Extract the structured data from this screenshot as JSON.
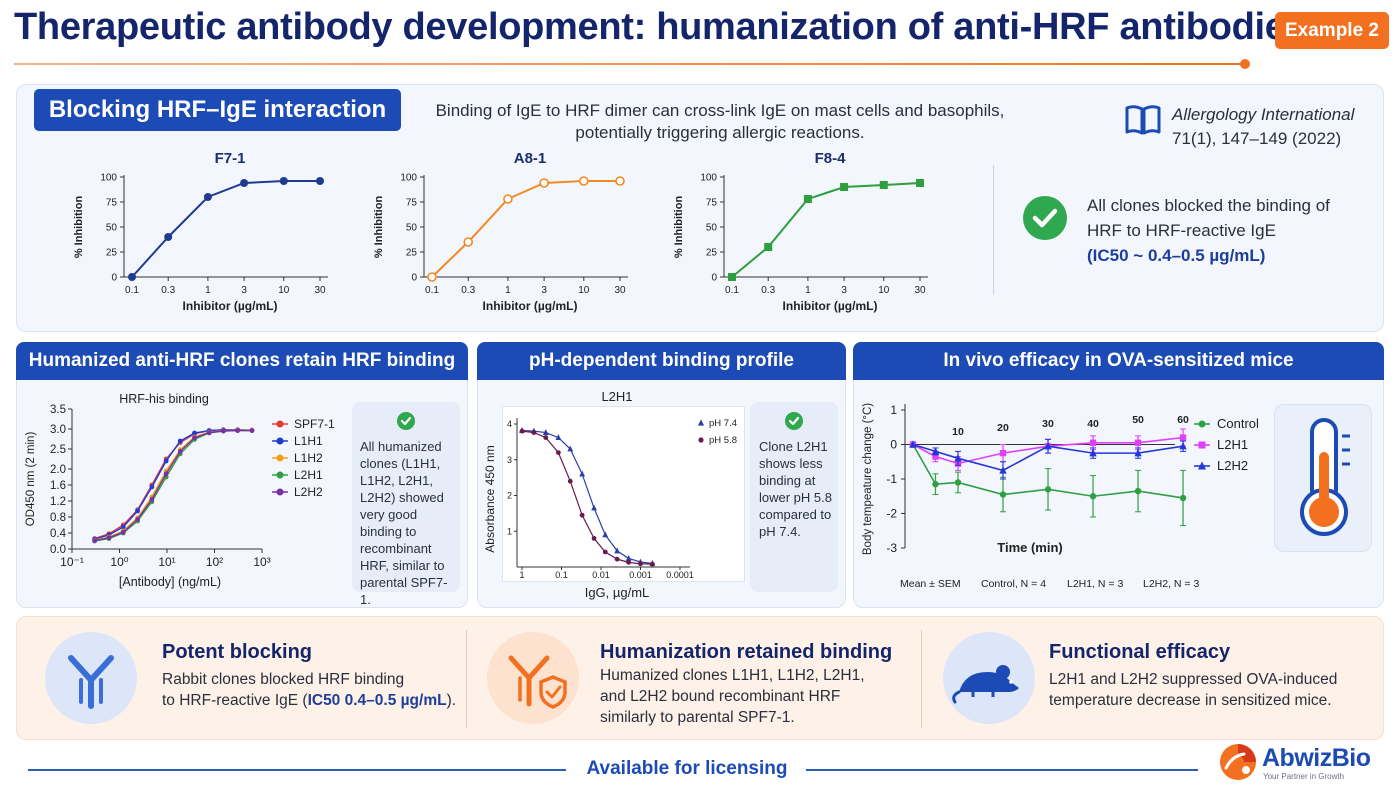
{
  "header": {
    "title": "Therapeutic antibody development: humanization of anti-HRF antibodies",
    "badge": "Example 2"
  },
  "top": {
    "section_tag": "Blocking HRF–IgE interaction",
    "mechanism_line1": "Binding of IgE to HRF dimer can cross-link IgE on mast cells and basophils,",
    "mechanism_line2": "potentially triggering allergic reactions.",
    "reference_journal": "Allergology International",
    "reference_cite": "71(1), 147–149 (2022)",
    "claim_line1": "All clones blocked the binding of",
    "claim_line2": "HRF to HRF-reactive IgE",
    "claim_line3": "(IC50 ~ 0.4–0.5 µg/mL)"
  },
  "sections": {
    "binding_title": "Humanized anti-HRF clones retain HRF binding",
    "binding_note": "All humanized clones (L1H1, L1H2, L2H1, L2H2) showed very good binding to recombinant HRF, similar to parental SPF7-1.",
    "ph_title": "pH-dependent binding profile",
    "ph_note": "Clone L2H1 shows less binding at lower pH 5.8 compared to pH 7.4.",
    "invivo_title": "In vivo efficacy in OVA-sensitized mice"
  },
  "bottom": {
    "item1_title": "Potent blocking",
    "item1_line1": "Rabbit clones blocked HRF binding",
    "item1_line2a": "to HRF-reactive IgE (",
    "item1_line2b": "IC50 0.4–0.5 µg/mL",
    "item1_line2c": ").",
    "item2_title": "Humanization retained binding",
    "item2_line1": "Humanized clones L1H1, L1H2, L2H1,",
    "item2_line2": "and L2H2 bound recombinant HRF",
    "item2_line3": "similarly to parental SPF7-1.",
    "item3_title": "Functional efficacy",
    "item3_line1": "L2H1 and L2H2 suppressed OVA-induced",
    "item3_line2": "temperature decrease in sensitized mice."
  },
  "footer": {
    "licensing": "Available for licensing",
    "brand": "AbwizBio",
    "tagline": "Your Partner in Growth"
  },
  "colors": {
    "navy": "#14256b",
    "blue": "#1d4bb5",
    "orange": "#f37021",
    "green": "#2fa84f"
  },
  "chart_data": [
    {
      "type": "line",
      "title": "F7-1",
      "xlabel": "Inhibitor (µg/mL)",
      "ylabel": "% Inhibition",
      "xscale": "log",
      "x": [
        0.1,
        0.3,
        1,
        3,
        10,
        30
      ],
      "xtick_labels": [
        "0.1",
        "0.3",
        "1",
        "3",
        "10",
        "30"
      ],
      "yticks": [
        0,
        25,
        50,
        75,
        100
      ],
      "ylim": [
        0,
        100
      ],
      "series": [
        {
          "values": [
            0,
            40,
            80,
            94,
            96,
            96
          ],
          "color": "#1f3a93",
          "marker": "filled-circle"
        }
      ]
    },
    {
      "type": "line",
      "title": "A8-1",
      "xlabel": "Inhibitor (µg/mL)",
      "ylabel": "% Inhibition",
      "xscale": "log",
      "x": [
        0.1,
        0.3,
        1,
        3,
        10,
        30
      ],
      "xtick_labels": [
        "0.1",
        "0.3",
        "1",
        "3",
        "10",
        "30"
      ],
      "yticks": [
        0,
        25,
        50,
        75,
        100
      ],
      "ylim": [
        0,
        100
      ],
      "series": [
        {
          "values": [
            0,
            35,
            78,
            94,
            96,
            96
          ],
          "color": "#f08a24",
          "marker": "open-circle"
        }
      ]
    },
    {
      "type": "line",
      "title": "F8-4",
      "xlabel": "Inhibitor (µg/mL)",
      "ylabel": "% Inhibition",
      "xscale": "log",
      "x": [
        0.1,
        0.3,
        1,
        3,
        10,
        30
      ],
      "xtick_labels": [
        "0.1",
        "0.3",
        "1",
        "3",
        "10",
        "30"
      ],
      "yticks": [
        0,
        25,
        50,
        75,
        100
      ],
      "ylim": [
        0,
        100
      ],
      "series": [
        {
          "values": [
            0,
            30,
            78,
            90,
            92,
            94
          ],
          "color": "#2e9e3e",
          "marker": "filled-square"
        }
      ]
    },
    {
      "type": "line",
      "title": "HRF-his binding",
      "xlabel": "[Antibody] (ng/mL)",
      "ylabel": "OD450 nm (2 min)",
      "xscale": "log",
      "xlim": [
        0.1,
        1000
      ],
      "xtick_labels": [
        "10⁻¹",
        "10⁰",
        "10¹",
        "10²",
        "10³"
      ],
      "ylim": [
        0,
        3.5
      ],
      "yticks": [
        0.0,
        0.4,
        0.8,
        1.2,
        1.6,
        2.0,
        2.5,
        3.0,
        3.5
      ],
      "ytick_labels": [
        "0.0",
        "0.4",
        "0.8",
        "1.2",
        "1.6",
        "2.0",
        "2.5",
        "3.0",
        "3.5"
      ],
      "x": [
        0.3,
        0.6,
        1.2,
        2.4,
        4.8,
        9.6,
        19,
        38,
        77,
        154,
        307,
        614
      ],
      "series": [
        {
          "name": "SPF7-1",
          "color": "#e53935",
          "marker": "circle",
          "values": [
            0.26,
            0.38,
            0.6,
            0.98,
            1.6,
            2.25,
            2.66,
            2.88,
            2.96,
            2.98,
            2.98,
            2.97
          ]
        },
        {
          "name": "L1H1",
          "color": "#1e3bd6",
          "marker": "circle",
          "values": [
            0.25,
            0.35,
            0.55,
            0.95,
            1.55,
            2.2,
            2.7,
            2.9,
            2.96,
            2.98,
            2.98,
            2.97
          ]
        },
        {
          "name": "L1H2",
          "color": "#f39c12",
          "marker": "circle",
          "values": [
            0.22,
            0.3,
            0.45,
            0.78,
            1.3,
            1.95,
            2.48,
            2.8,
            2.92,
            2.96,
            2.97,
            2.97
          ]
        },
        {
          "name": "L2H1",
          "color": "#2ea043",
          "marker": "circle",
          "values": [
            0.2,
            0.26,
            0.4,
            0.7,
            1.18,
            1.8,
            2.38,
            2.74,
            2.9,
            2.95,
            2.96,
            2.96
          ]
        },
        {
          "name": "L2H2",
          "color": "#7b2fa6",
          "marker": "circle",
          "values": [
            0.21,
            0.28,
            0.42,
            0.74,
            1.24,
            1.88,
            2.44,
            2.78,
            2.91,
            2.95,
            2.96,
            2.96
          ]
        }
      ]
    },
    {
      "type": "line",
      "title": "L2H1",
      "xlabel": "IgG, µg/mL",
      "ylabel": "Absorbance 450 nm",
      "xscale": "log",
      "xaxis_reversed": true,
      "xtick_labels": [
        "1",
        "0.1",
        "0.01",
        "0.001",
        "0.0001"
      ],
      "ylim": [
        0,
        4
      ],
      "yticks": [
        1,
        2,
        3,
        4
      ],
      "x": [
        1,
        0.5,
        0.25,
        0.12,
        0.06,
        0.03,
        0.015,
        0.0078,
        0.0039,
        0.002,
        0.001,
        0.0005
      ],
      "series": [
        {
          "name": "pH 7.4",
          "color": "#2b3fa6",
          "marker": "triangle",
          "values": [
            3.82,
            3.8,
            3.76,
            3.62,
            3.3,
            2.6,
            1.65,
            0.9,
            0.45,
            0.24,
            0.14,
            0.1
          ]
        },
        {
          "name": "pH 5.8",
          "color": "#6a1b4d",
          "marker": "circle",
          "values": [
            3.8,
            3.76,
            3.62,
            3.2,
            2.4,
            1.45,
            0.8,
            0.42,
            0.22,
            0.13,
            0.09,
            0.08
          ]
        }
      ]
    },
    {
      "type": "line",
      "xlabel": "Time (min)",
      "ylabel": "Body tempeature change (°C)",
      "xlim": [
        0,
        70
      ],
      "ylim": [
        -3,
        1
      ],
      "yticks": [
        -3,
        -2,
        -1,
        0,
        1
      ],
      "x": [
        0,
        5,
        10,
        20,
        30,
        40,
        50,
        60
      ],
      "x_labels": [
        "",
        "",
        "10",
        "20",
        "30",
        "40",
        "50",
        "60"
      ],
      "footnotes": [
        "Mean ± SEM",
        "Control, N = 4",
        "L2H1, N = 3",
        "L2H2, N = 3"
      ],
      "series": [
        {
          "name": "Control",
          "color": "#2ea043",
          "marker": "circle",
          "values": [
            0,
            -1.15,
            -1.1,
            -1.45,
            -1.3,
            -1.5,
            -1.35,
            -1.55
          ],
          "errors": [
            0,
            0.3,
            0.3,
            0.5,
            0.6,
            0.6,
            0.6,
            0.8
          ]
        },
        {
          "name": "L2H1",
          "color": "#e040fb",
          "marker": "square",
          "values": [
            0,
            -0.35,
            -0.55,
            -0.25,
            -0.05,
            0.05,
            0.05,
            0.2
          ],
          "errors": [
            0,
            0.15,
            0.2,
            0.25,
            0.2,
            0.2,
            0.2,
            0.25
          ]
        },
        {
          "name": "L2H2",
          "color": "#2438d6",
          "marker": "triangle",
          "values": [
            0,
            -0.2,
            -0.4,
            -0.75,
            -0.05,
            -0.25,
            -0.25,
            -0.05
          ],
          "errors": [
            0,
            0.1,
            0.2,
            0.25,
            0.2,
            0.15,
            0.15,
            0.15
          ]
        }
      ]
    }
  ]
}
